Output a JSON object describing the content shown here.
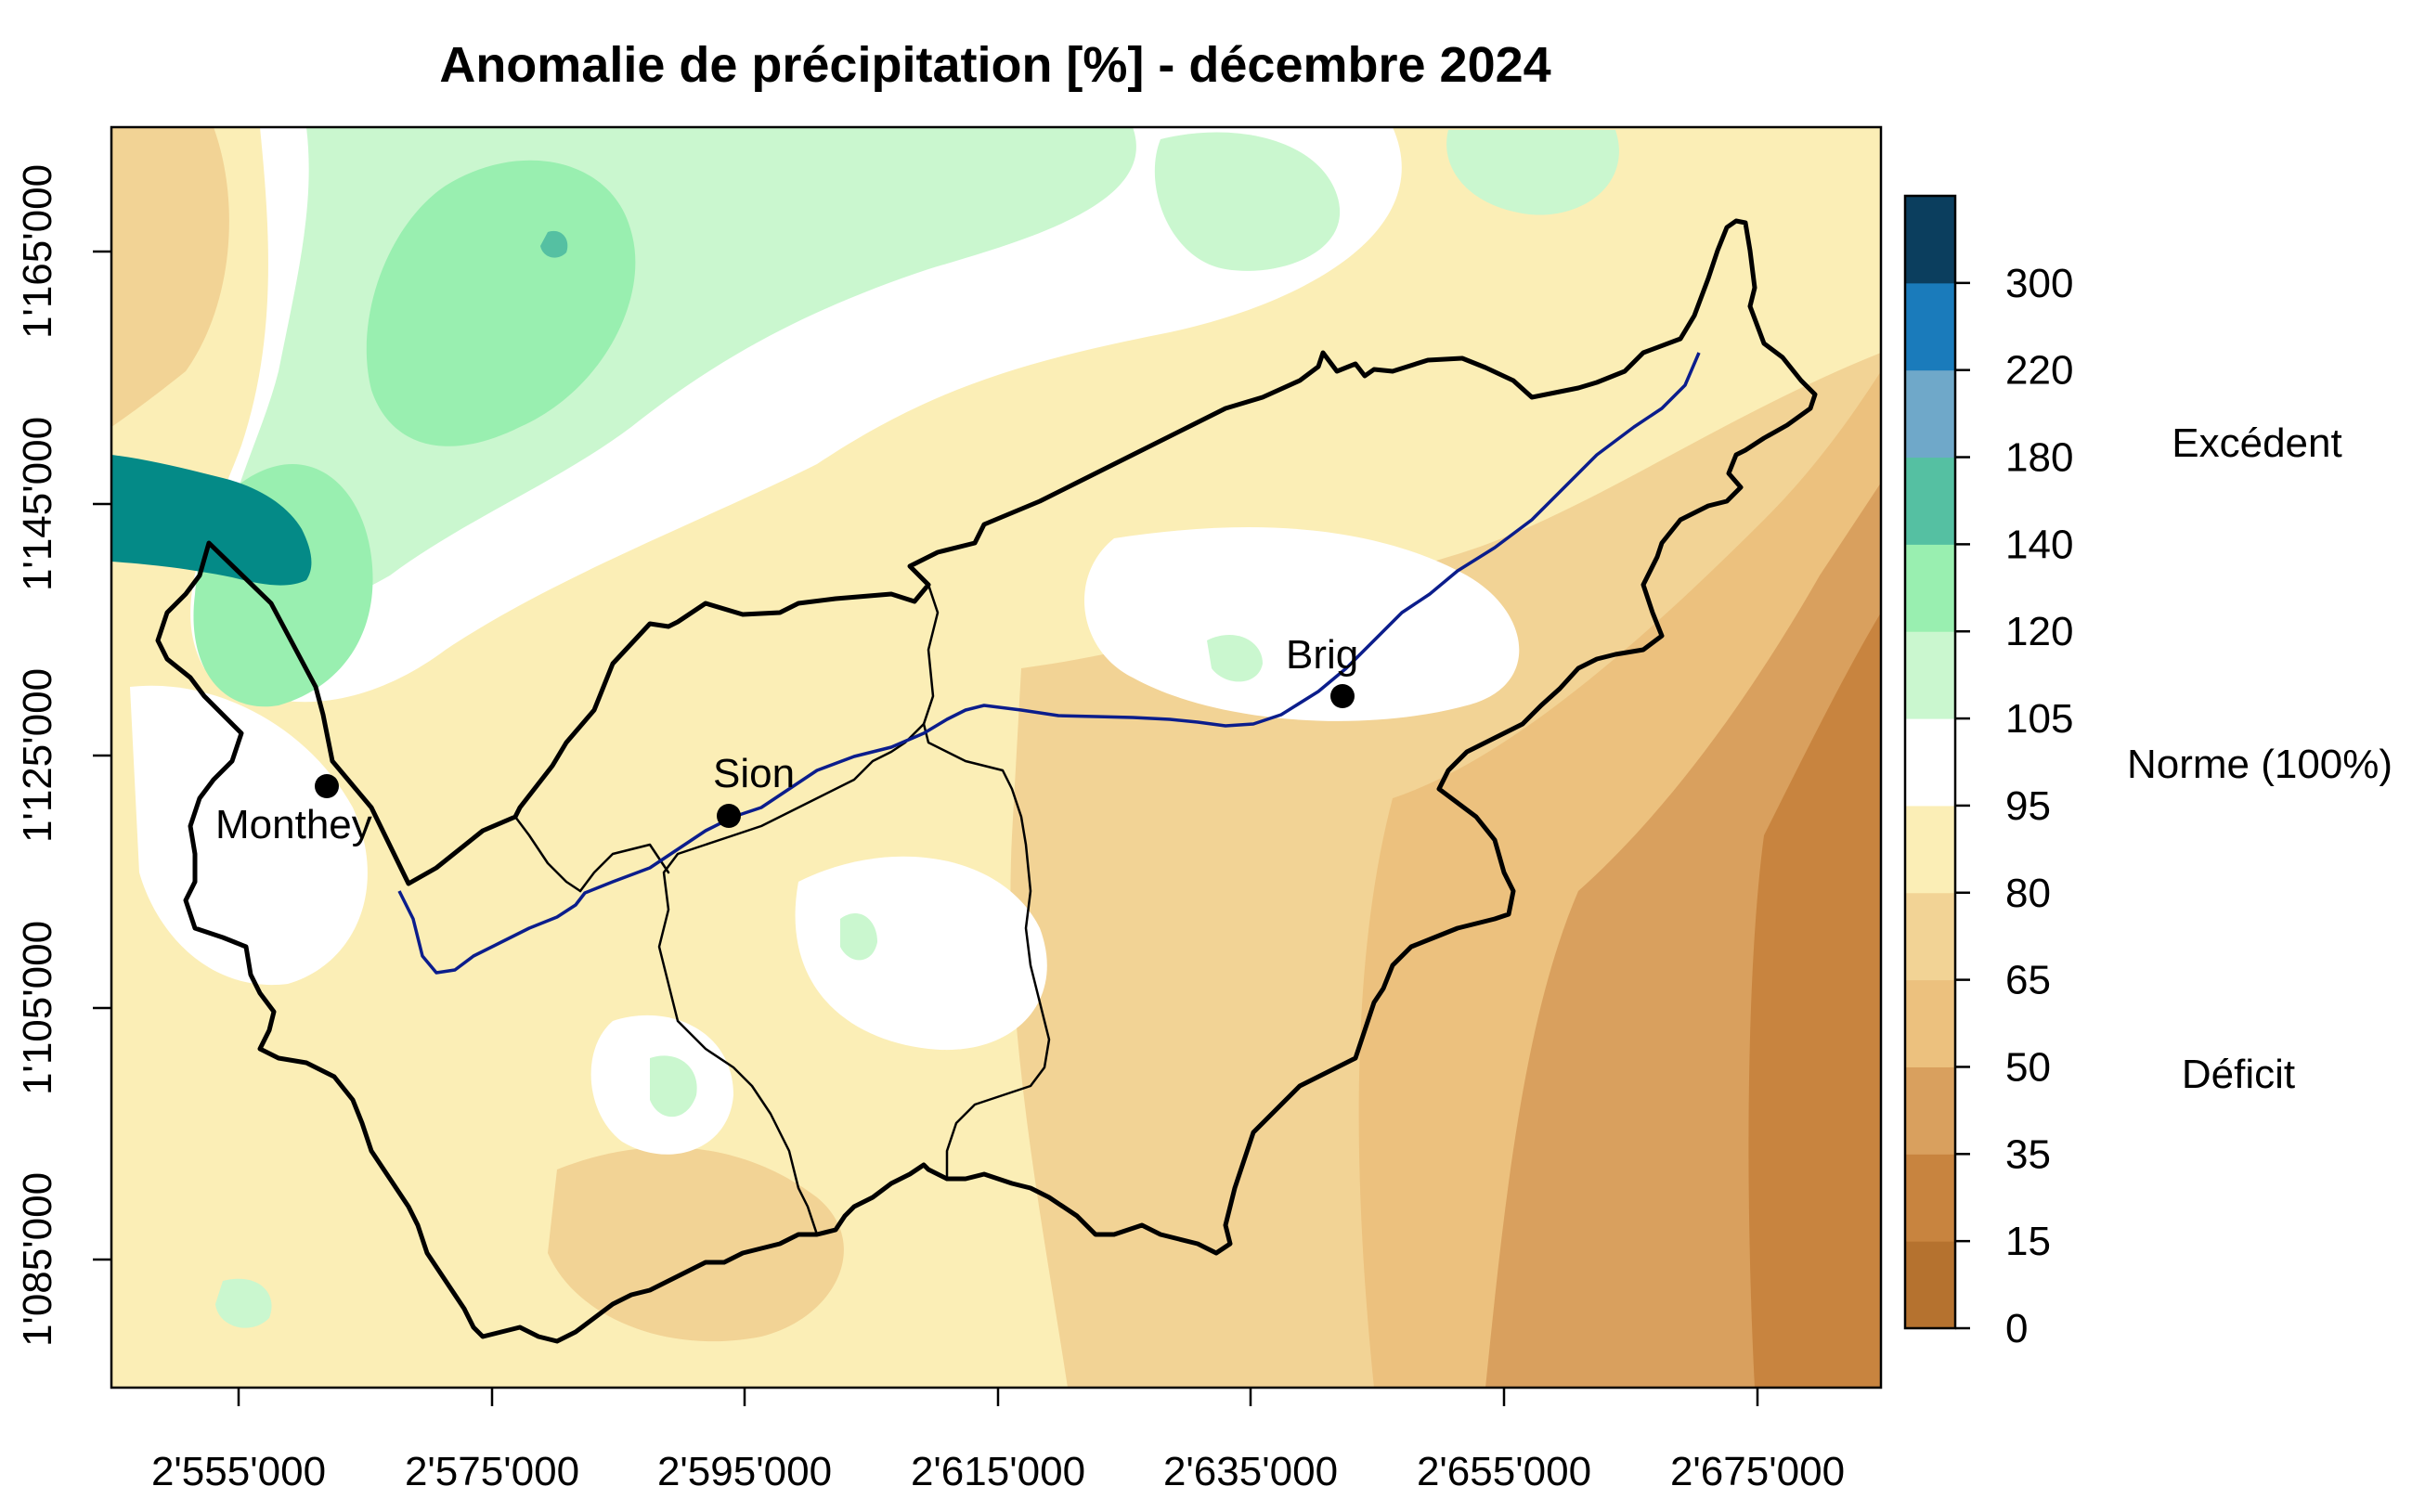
{
  "title": "Anomalie de précipitation [%] - décembre 2024",
  "x_ticks": [
    "2'555'000",
    "2'575'000",
    "2'595'000",
    "2'615'000",
    "2'635'000",
    "2'655'000",
    "2'675'000"
  ],
  "y_ticks": [
    "1'085'000",
    "1'105'000",
    "1'125'000",
    "1'145'000",
    "1'165'000"
  ],
  "cities": [
    {
      "name": "Monthey"
    },
    {
      "name": "Sion"
    },
    {
      "name": "Brig"
    }
  ],
  "legend": {
    "breaks": [
      "0",
      "15",
      "35",
      "50",
      "65",
      "80",
      "95",
      "105",
      "120",
      "140",
      "180",
      "220",
      "300"
    ],
    "colors": [
      "#b5722f",
      "#c8843f",
      "#d9a05e",
      "#ecc17e",
      "#f2d395",
      "#fbeeb6",
      "#ffffff",
      "#caf7cf",
      "#99efb0",
      "#55c0a2",
      "#6fa8c9",
      "#1a7bbb",
      "#0b3e5e"
    ],
    "categories": {
      "excess": "Excédent",
      "norm": "Norme (100%)",
      "deficit": "Déficit"
    }
  },
  "colors": {
    "lake": "#048a87",
    "river": "#0b1d8c",
    "border": "#000000"
  }
}
